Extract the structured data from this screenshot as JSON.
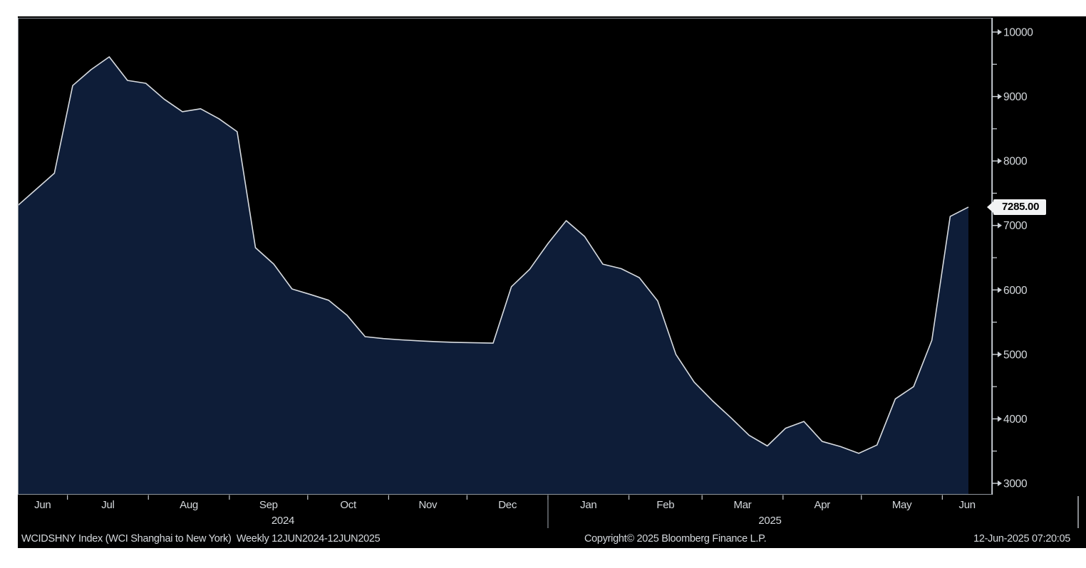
{
  "chart_data": {
    "type": "area",
    "title": "WCIDSHNY Index (WCI Shanghai to New York)",
    "subtitle": "Weekly 12JUN2024-12JUN2025",
    "start_date": "12JUN2024",
    "end_date": "12JUN2025",
    "frequency": "Weekly",
    "legend_position": "none",
    "grid": false,
    "last_value": 7285.0,
    "last_value_label": "7285.00",
    "series": [
      {
        "name": "WCIDSHNY Index",
        "values": [
          7310,
          7560,
          7810,
          9170,
          9415,
          9615,
          9250,
          9205,
          8960,
          8765,
          8810,
          8655,
          8455,
          6655,
          6400,
          6015,
          5930,
          5840,
          5610,
          5275,
          5245,
          5225,
          5210,
          5195,
          5185,
          5180,
          5175,
          6050,
          6320,
          6720,
          7075,
          6830,
          6400,
          6330,
          6190,
          5830,
          5000,
          4570,
          4280,
          4020,
          3745,
          3580,
          3855,
          3960,
          3650,
          3570,
          3465,
          3595,
          4310,
          4500,
          5220,
          7140,
          7285
        ]
      }
    ],
    "y_axis": {
      "major_ticks": [
        10000,
        9000,
        8000,
        7000,
        6000,
        5000,
        4000,
        3000
      ],
      "minor_tick_step": 500,
      "ylim": [
        2824,
        10221
      ],
      "side": "right"
    },
    "x_axis": {
      "month_labels": [
        "Jun",
        "Jul",
        "Aug",
        "Sep",
        "Oct",
        "Nov",
        "Dec",
        "Jan",
        "Feb",
        "Mar",
        "Apr",
        "May",
        "Jun"
      ],
      "month_boundary_days": [
        19,
        50,
        81,
        111,
        142,
        172,
        203,
        234,
        262,
        293,
        323,
        354
      ],
      "axis_total_days": 373,
      "data_total_days": 365,
      "year_sections": [
        {
          "label": "2024",
          "start_day": 0,
          "end_day": 203
        },
        {
          "label": "2025",
          "start_day": 203,
          "end_day": 373
        }
      ],
      "year_separator_day": 203
    },
    "colors": {
      "page_bg": "#ffffff",
      "chart_bg": "#000000",
      "area_fill": "#0e1d38",
      "line": "#d8dce1",
      "frame": "#90969d",
      "axis_line": "#ced3d9",
      "tick": "#c3c8ce",
      "text": "#d4d8dc",
      "marker_bg": "#f2f3f4",
      "marker_text": "#000000"
    }
  },
  "footer": {
    "left": "WCIDSHNY Index (WCI Shanghai to New York)  Weekly 12JUN2024-12JUN2025",
    "copyright": "Copyright© 2025 Bloomberg Finance L.P.",
    "timestamp": "12-Jun-2025 07:20:05"
  }
}
